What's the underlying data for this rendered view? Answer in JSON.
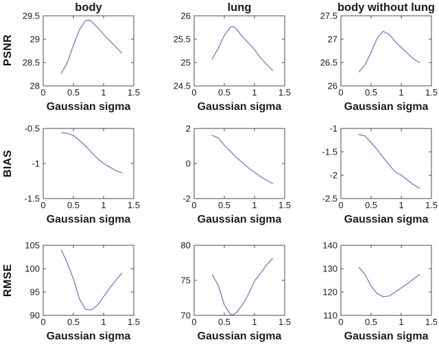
{
  "figure": {
    "background": "#ffffff",
    "axis_color": "#4a4a4a",
    "text_color": "#1b1b1b",
    "line_color": "#7577cd",
    "row_labels": [
      "PSNR",
      "BIAS",
      "RMSE"
    ],
    "column_titles": [
      "body",
      "lung",
      "body without lung"
    ],
    "x_axis_label": "Gaussian sigma"
  },
  "chart_data": [
    {
      "name": "psnr-body",
      "type": "line",
      "title": "body",
      "ylabel": "PSNR",
      "xlabel": "Gaussian sigma",
      "x": [
        0.3,
        0.4,
        0.5,
        0.6,
        0.7,
        0.75,
        0.8,
        0.9,
        1.0,
        1.1,
        1.2,
        1.3
      ],
      "y": [
        28.27,
        28.5,
        28.87,
        29.2,
        29.4,
        29.41,
        29.38,
        29.25,
        29.1,
        28.97,
        28.84,
        28.7
      ],
      "xlim": [
        0,
        1.5
      ],
      "ylim": [
        28,
        29.5
      ],
      "xticks": [
        0,
        0.5,
        1,
        1.5
      ],
      "yticks": [
        28,
        28.5,
        29,
        29.5
      ],
      "grid": false,
      "legend": null
    },
    {
      "name": "psnr-lung",
      "type": "line",
      "title": "lung",
      "ylabel": "PSNR",
      "xlabel": "Gaussian sigma",
      "x": [
        0.3,
        0.4,
        0.5,
        0.6,
        0.65,
        0.7,
        0.8,
        0.9,
        1.0,
        1.1,
        1.2,
        1.3
      ],
      "y": [
        25.08,
        25.3,
        25.58,
        25.76,
        25.77,
        25.72,
        25.55,
        25.42,
        25.28,
        25.1,
        24.96,
        24.83
      ],
      "xlim": [
        0,
        1.5
      ],
      "ylim": [
        24.5,
        26
      ],
      "xticks": [
        0,
        0.5,
        1,
        1.5
      ],
      "yticks": [
        24.5,
        25,
        25.5,
        26
      ],
      "grid": false,
      "legend": null
    },
    {
      "name": "psnr-body-without-lung",
      "type": "line",
      "title": "body without lung",
      "ylabel": "PSNR",
      "xlabel": "Gaussian sigma",
      "x": [
        0.3,
        0.4,
        0.5,
        0.6,
        0.7,
        0.8,
        0.9,
        1.0,
        1.1,
        1.2,
        1.3
      ],
      "y": [
        26.3,
        26.45,
        26.72,
        27.02,
        27.17,
        27.1,
        26.95,
        26.82,
        26.7,
        26.58,
        26.5
      ],
      "xlim": [
        0,
        1.5
      ],
      "ylim": [
        26,
        27.5
      ],
      "xticks": [
        0,
        0.5,
        1,
        1.5
      ],
      "yticks": [
        26,
        26.5,
        27,
        27.5
      ],
      "grid": false,
      "legend": null
    },
    {
      "name": "bias-body",
      "type": "line",
      "title": "",
      "ylabel": "BIAS",
      "xlabel": "Gaussian sigma",
      "x": [
        0.3,
        0.4,
        0.5,
        0.6,
        0.7,
        0.8,
        0.9,
        1.0,
        1.1,
        1.2,
        1.3
      ],
      "y": [
        -0.56,
        -0.57,
        -0.6,
        -0.67,
        -0.75,
        -0.84,
        -0.93,
        -1.0,
        -1.05,
        -1.1,
        -1.13
      ],
      "xlim": [
        0,
        1.5
      ],
      "ylim": [
        -1.5,
        -0.5
      ],
      "xticks": [
        0,
        0.5,
        1,
        1.5
      ],
      "yticks": [
        -1.5,
        -1,
        -0.5
      ],
      "grid": false,
      "legend": null
    },
    {
      "name": "bias-lung",
      "type": "line",
      "title": "",
      "ylabel": "BIAS",
      "xlabel": "Gaussian sigma",
      "x": [
        0.3,
        0.4,
        0.5,
        0.6,
        0.7,
        0.8,
        0.9,
        1.0,
        1.1,
        1.2,
        1.3
      ],
      "y": [
        1.62,
        1.45,
        1.05,
        0.7,
        0.35,
        0.05,
        -0.25,
        -0.5,
        -0.75,
        -0.95,
        -1.15
      ],
      "xlim": [
        0,
        1.5
      ],
      "ylim": [
        -2,
        2
      ],
      "xticks": [
        0,
        0.5,
        1,
        1.5
      ],
      "yticks": [
        -2,
        0,
        2
      ],
      "grid": false,
      "legend": null
    },
    {
      "name": "bias-body-without-lung",
      "type": "line",
      "title": "",
      "ylabel": "BIAS",
      "xlabel": "Gaussian sigma",
      "x": [
        0.3,
        0.4,
        0.5,
        0.6,
        0.7,
        0.8,
        0.9,
        1.0,
        1.1,
        1.2,
        1.3
      ],
      "y": [
        -1.13,
        -1.16,
        -1.3,
        -1.45,
        -1.62,
        -1.78,
        -1.93,
        -2.0,
        -2.1,
        -2.2,
        -2.28
      ],
      "xlim": [
        0,
        1.5
      ],
      "ylim": [
        -2.5,
        -1
      ],
      "xticks": [
        0,
        0.5,
        1,
        1.5
      ],
      "yticks": [
        -2.5,
        -2,
        -1.5,
        -1
      ],
      "grid": false,
      "legend": null
    },
    {
      "name": "rmse-body",
      "type": "line",
      "title": "",
      "ylabel": "RMSE",
      "xlabel": "Gaussian sigma",
      "x": [
        0.3,
        0.4,
        0.5,
        0.6,
        0.7,
        0.8,
        0.9,
        1.0,
        1.1,
        1.2,
        1.3
      ],
      "y": [
        104,
        101.2,
        97.8,
        93.5,
        91.3,
        91.2,
        92.2,
        94.0,
        95.8,
        97.5,
        99.0
      ],
      "xlim": [
        0,
        1.5
      ],
      "ylim": [
        90,
        105
      ],
      "xticks": [
        0,
        0.5,
        1,
        1.5
      ],
      "yticks": [
        90,
        95,
        100,
        105
      ],
      "grid": false,
      "legend": null
    },
    {
      "name": "rmse-lung",
      "type": "line",
      "title": "",
      "ylabel": "RMSE",
      "xlabel": "Gaussian sigma",
      "x": [
        0.3,
        0.4,
        0.5,
        0.6,
        0.65,
        0.7,
        0.8,
        0.9,
        1.0,
        1.1,
        1.2,
        1.3
      ],
      "y": [
        75.8,
        74.3,
        71.5,
        70.15,
        70.1,
        70.4,
        71.5,
        73.0,
        74.9,
        76.0,
        77.2,
        78.1
      ],
      "xlim": [
        0,
        1.5
      ],
      "ylim": [
        70,
        80
      ],
      "xticks": [
        0,
        0.5,
        1,
        1.5
      ],
      "yticks": [
        70,
        75,
        80
      ],
      "grid": false,
      "legend": null
    },
    {
      "name": "rmse-body-without-lung",
      "type": "line",
      "title": "",
      "ylabel": "RMSE",
      "xlabel": "Gaussian sigma",
      "x": [
        0.3,
        0.4,
        0.5,
        0.6,
        0.7,
        0.8,
        0.9,
        1.0,
        1.1,
        1.2,
        1.3
      ],
      "y": [
        130.5,
        127.5,
        122.5,
        119.3,
        118.0,
        118.3,
        120.0,
        121.8,
        123.5,
        125.5,
        127.5
      ],
      "xlim": [
        0,
        1.5
      ],
      "ylim": [
        110,
        140
      ],
      "xticks": [
        0,
        0.5,
        1,
        1.5
      ],
      "yticks": [
        110,
        120,
        130,
        140
      ],
      "grid": false,
      "legend": null
    }
  ]
}
